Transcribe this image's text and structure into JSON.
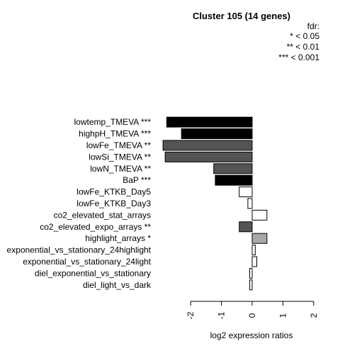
{
  "chart_data": {
    "type": "bar",
    "orientation": "horizontal",
    "title": "Cluster 105 (14 genes)",
    "xlabel": "log2 expression ratios",
    "ylabel": "",
    "xlim": [
      -2.5,
      2.2
    ],
    "xticks": [
      -2,
      -1,
      0,
      1,
      2
    ],
    "xtick_labels": [
      "-2",
      "-1",
      "0",
      "1",
      "2"
    ],
    "legend": {
      "title": "fdr:",
      "entries": [
        "* < 0.05",
        "** < 0.01",
        "*** < 0.001"
      ],
      "placement": "top-right"
    },
    "categories": [
      "lowtemp_TMEVA ***",
      "highpH_TMEVA ***",
      "lowFe_TMEVA **",
      "lowSi_TMEVA **",
      "lowN_TMEVA **",
      "BaP ***",
      "lowFe_KTKB_Day5",
      "lowFe_KTKB_Day3",
      "co2_elevated_stat_arrays",
      "co2_elevated_expo_arrays **",
      "highlight_arrays *",
      "exponential_vs_stationary_24highlight",
      "exponential_vs_stationary_24light",
      "diel_exponential_vs_stationary",
      "diel_light_vs_dark"
    ],
    "values": [
      -2.78,
      -2.3,
      -2.9,
      -2.83,
      -1.25,
      -1.2,
      -0.42,
      -0.14,
      0.48,
      -0.42,
      0.48,
      0.1,
      0.15,
      -0.08,
      -0.08
    ],
    "colors": [
      "#000000",
      "#000000",
      "#545454",
      "#545454",
      "#545454",
      "#000000",
      "#ffffff",
      "#ffffff",
      "#ffffff",
      "#545454",
      "#a8a8a8",
      "#ffffff",
      "#ffffff",
      "#ffffff",
      "#ffffff"
    ]
  }
}
